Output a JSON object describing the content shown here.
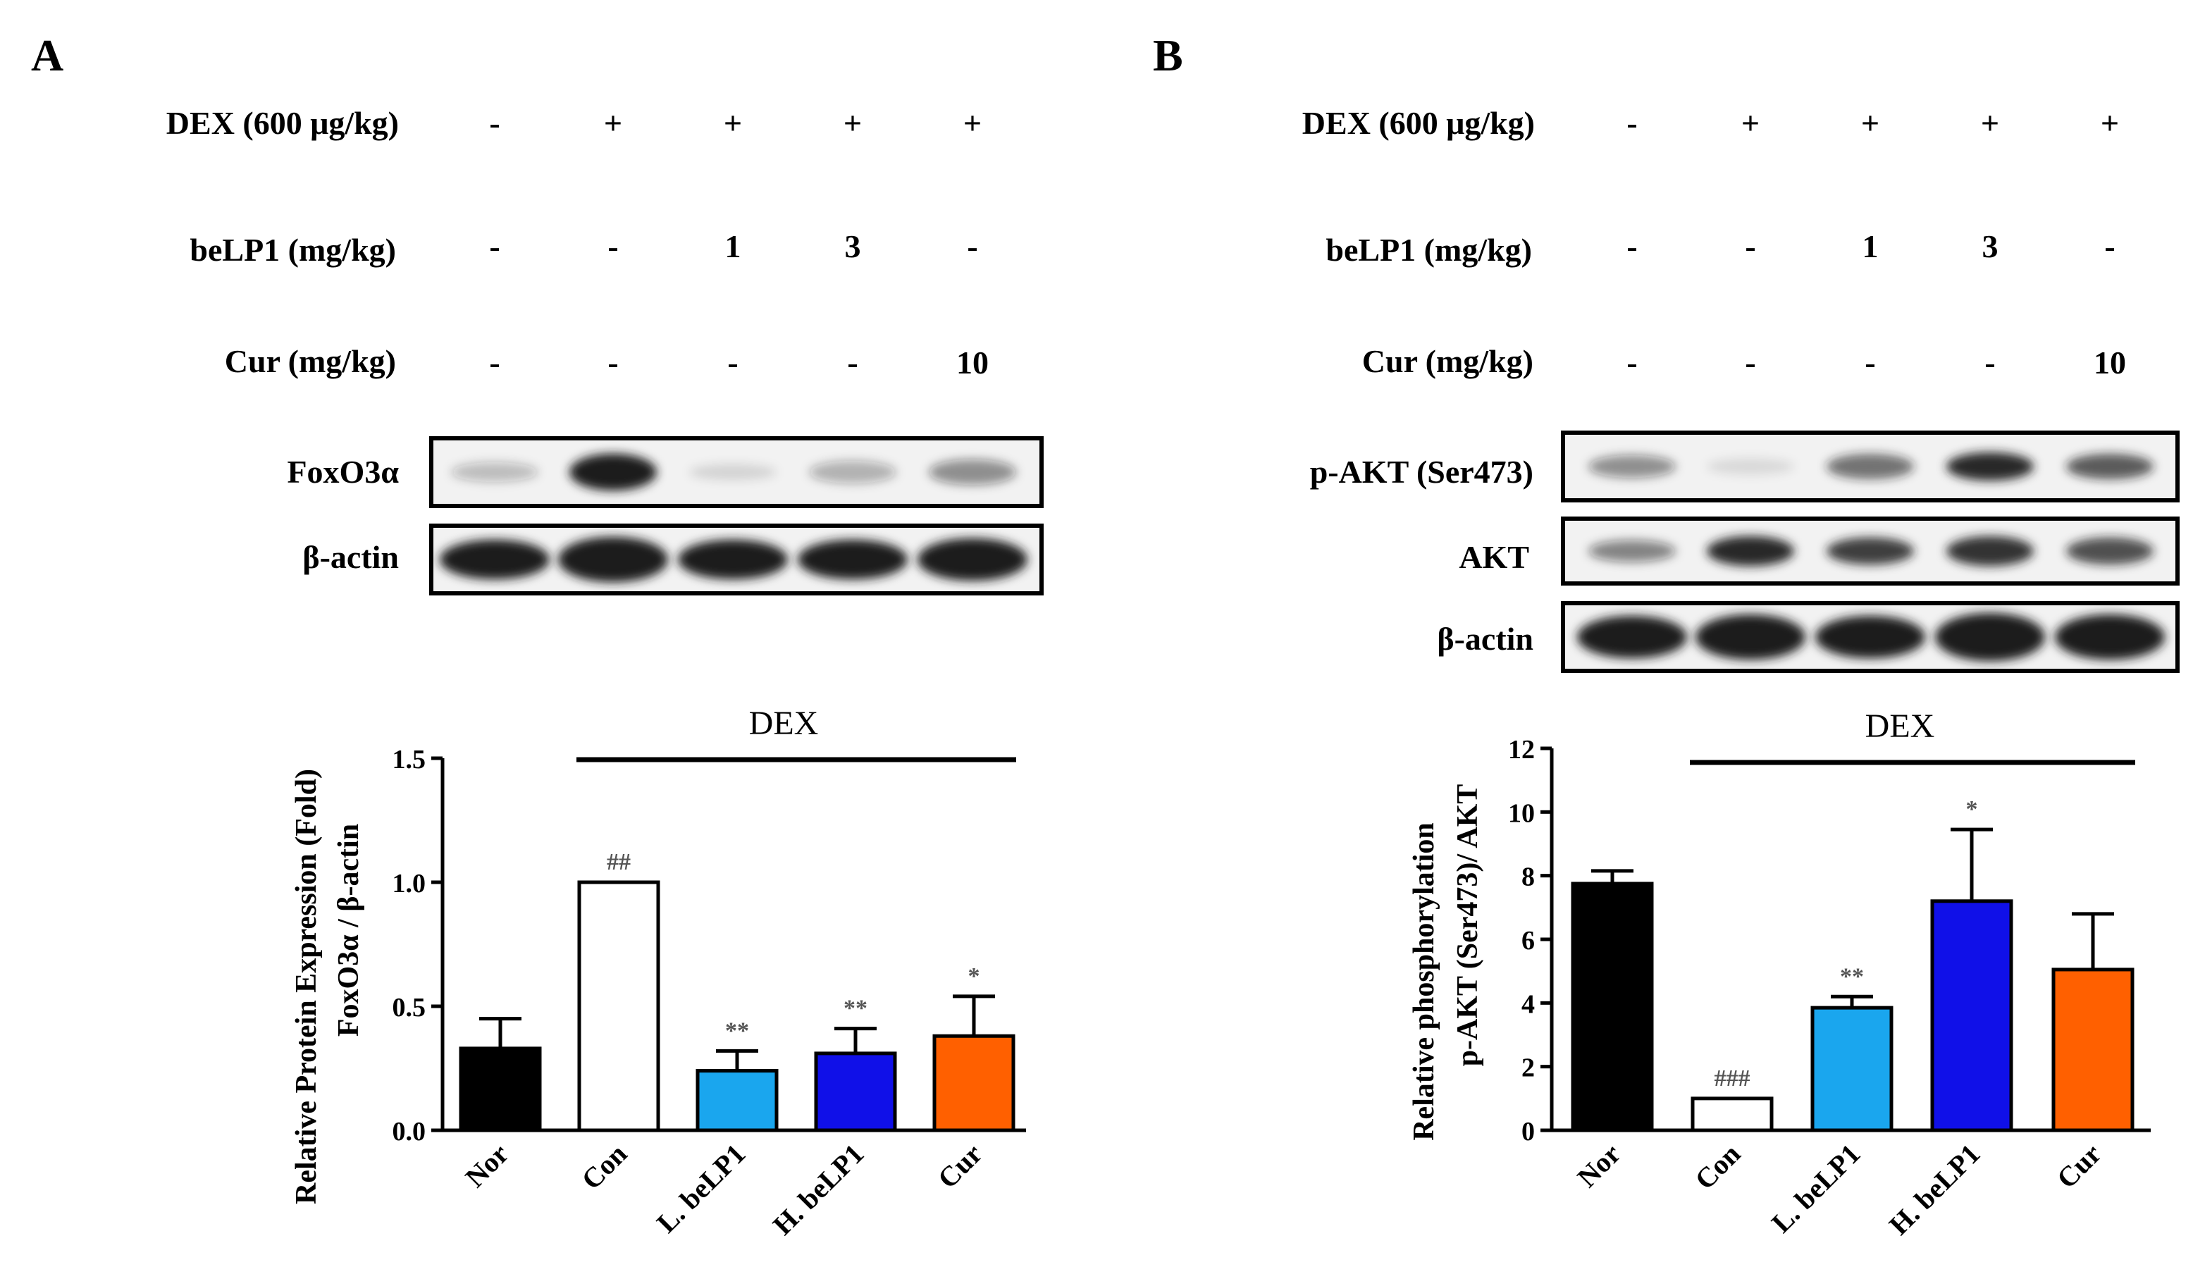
{
  "colors": {
    "nor": "#000000",
    "con": "#ffffff",
    "l_belp1": "#1aa6ee",
    "h_belp1": "#1010e8",
    "cur": "#ff6000",
    "band": "#1c1c1c",
    "annotation": "#555555"
  },
  "panels": [
    {
      "label": "A",
      "conditions": [
        {
          "label": "DEX (600 μg/kg)",
          "values": [
            "-",
            "+",
            "+",
            "+",
            "+"
          ]
        },
        {
          "label": "beLP1 (mg/kg)",
          "values": [
            "-",
            "-",
            "1",
            "3",
            "-"
          ]
        },
        {
          "label": "Cur (mg/kg)",
          "values": [
            "-",
            "-",
            "-",
            "-",
            "10"
          ]
        }
      ],
      "blots": [
        {
          "label": "FoxO3α",
          "intensity": [
            0.25,
            1.0,
            0.12,
            0.3,
            0.45
          ],
          "thickness": [
            0.35,
            0.65,
            0.3,
            0.4,
            0.45
          ]
        },
        {
          "label": "β-actin",
          "intensity": [
            1.0,
            1.0,
            1.0,
            1.0,
            1.0
          ],
          "thickness": [
            0.7,
            0.8,
            0.7,
            0.7,
            0.75
          ]
        }
      ]
    },
    {
      "label": "B",
      "conditions": [
        {
          "label": "DEX (600 μg/kg)",
          "values": [
            "-",
            "+",
            "+",
            "+",
            "+"
          ]
        },
        {
          "label": "beLP1 (mg/kg)",
          "values": [
            "-",
            "-",
            "1",
            "3",
            "-"
          ]
        },
        {
          "label": "Cur (mg/kg)",
          "values": [
            "-",
            "-",
            "-",
            "-",
            "10"
          ]
        }
      ],
      "blots": [
        {
          "label": "p-AKT (Ser473)",
          "intensity": [
            0.45,
            0.1,
            0.6,
            0.95,
            0.7
          ],
          "thickness": [
            0.4,
            0.3,
            0.45,
            0.5,
            0.45
          ]
        },
        {
          "label": "AKT",
          "intensity": [
            0.5,
            0.95,
            0.85,
            0.9,
            0.75
          ],
          "thickness": [
            0.4,
            0.55,
            0.5,
            0.55,
            0.5
          ]
        },
        {
          "label": "β-actin",
          "intensity": [
            1.0,
            1.0,
            1.0,
            1.0,
            1.0
          ],
          "thickness": [
            0.75,
            0.8,
            0.75,
            0.85,
            0.8
          ]
        }
      ]
    }
  ],
  "chart_data": [
    {
      "type": "bar",
      "categories": [
        "Nor",
        "Con",
        "L. beLP1",
        "H. beLP1",
        "Cur"
      ],
      "values": [
        0.33,
        1.0,
        0.24,
        0.31,
        0.38
      ],
      "errors": [
        0.12,
        0.0,
        0.08,
        0.1,
        0.16
      ],
      "annotations": [
        "",
        "##",
        "**",
        "**",
        "*"
      ],
      "ylabel": "Relative Protein Expression (Fold)",
      "ylabel2": "FoxO3α / β-actin",
      "ylim": [
        0,
        1.5
      ],
      "yticks": [
        0,
        0.5,
        1.0,
        1.5
      ],
      "ytick_labels": [
        "0.0",
        "0.5",
        "1.0",
        "1.5"
      ],
      "group_label": "DEX",
      "group_from": 1,
      "group_to": 4
    },
    {
      "type": "bar",
      "categories": [
        "Nor",
        "Con",
        "L. beLP1",
        "H. beLP1",
        "Cur"
      ],
      "values": [
        7.75,
        1.0,
        3.85,
        7.2,
        5.05
      ],
      "errors": [
        0.4,
        0.0,
        0.35,
        2.25,
        1.75
      ],
      "annotations": [
        "",
        "###",
        "**",
        "*",
        ""
      ],
      "ylabel": "Relative phosphorylation",
      "ylabel2": "p-AKT (Ser473)/ AKT",
      "ylim": [
        0,
        12
      ],
      "yticks": [
        0,
        2,
        4,
        6,
        8,
        10,
        12
      ],
      "ytick_labels": [
        "0",
        "2",
        "4",
        "6",
        "8",
        "10",
        "12"
      ],
      "group_label": "DEX",
      "group_from": 1,
      "group_to": 4
    }
  ]
}
